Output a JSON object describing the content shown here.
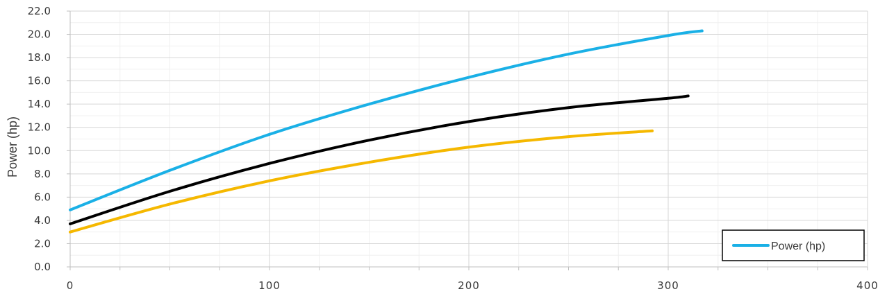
{
  "chart_data": {
    "type": "line",
    "title": "",
    "xlabel": "",
    "ylabel": "Power (hp)",
    "xlim": [
      0,
      400
    ],
    "ylim": [
      0,
      22
    ],
    "x_ticks": [
      0,
      100,
      200,
      300,
      400
    ],
    "x_tick_labels": [
      "0",
      "100",
      "200",
      "300",
      "400"
    ],
    "y_ticks": [
      0,
      2,
      4,
      6,
      8,
      10,
      12,
      14,
      16,
      18,
      20,
      22
    ],
    "y_tick_labels": [
      "0.0",
      "2.0",
      "4.0",
      "6.0",
      "8.0",
      "10.0",
      "12.0",
      "14.0",
      "16.0",
      "18.0",
      "20.0",
      "22.0"
    ],
    "grid": {
      "major": true,
      "minor": true,
      "x_minor_step": 25,
      "y_minor_step": 1
    },
    "legend": {
      "placement": "bottom-right",
      "entries": [
        "Power (hp)"
      ]
    },
    "series": [
      {
        "name": "Power (hp)",
        "color": "#1ab0e6",
        "x": [
          0,
          50,
          100,
          150,
          200,
          250,
          300,
          317
        ],
        "values": [
          4.9,
          8.3,
          11.4,
          14.0,
          16.3,
          18.3,
          19.9,
          20.3
        ]
      },
      {
        "color": "#000000",
        "x": [
          0,
          50,
          100,
          150,
          200,
          250,
          300,
          310
        ],
        "values": [
          3.7,
          6.5,
          8.9,
          10.9,
          12.5,
          13.7,
          14.5,
          14.7
        ]
      },
      {
        "color": "#f5b800",
        "x": [
          0,
          50,
          100,
          150,
          200,
          250,
          292
        ],
        "values": [
          3.0,
          5.4,
          7.4,
          9.0,
          10.3,
          11.2,
          11.7
        ]
      }
    ]
  }
}
